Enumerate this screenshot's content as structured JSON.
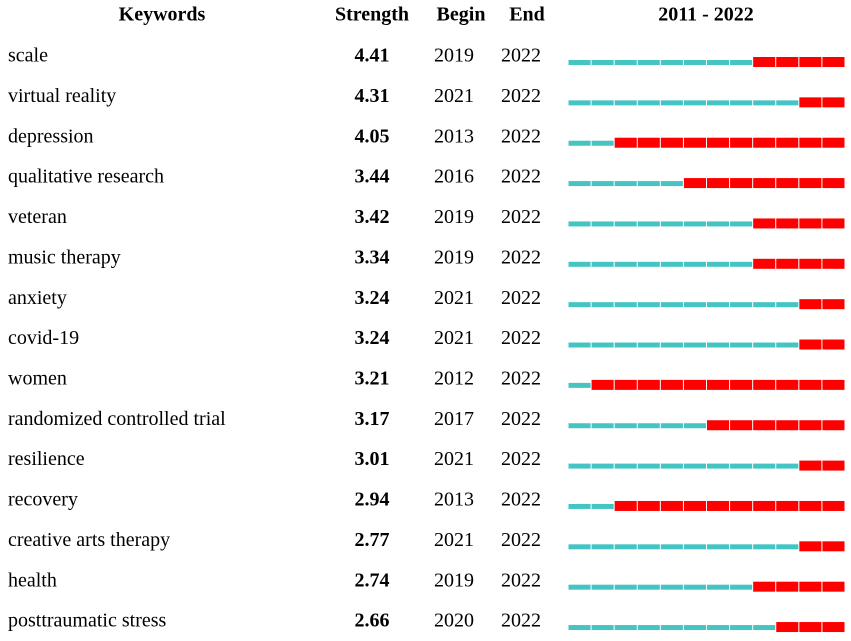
{
  "header": {
    "keyword": "Keywords",
    "strength": "Strength",
    "begin": "Begin",
    "end": "End",
    "timeline": "2011 - 2022"
  },
  "colors": {
    "before": "#45c4c4",
    "burst": "#ff0000"
  },
  "rows": [
    {
      "keyword": "scale",
      "strength": 4.41,
      "begin": 2019,
      "end": 2022
    },
    {
      "keyword": "virtual reality",
      "strength": 4.31,
      "begin": 2021,
      "end": 2022
    },
    {
      "keyword": "depression",
      "strength": 4.05,
      "begin": 2013,
      "end": 2022
    },
    {
      "keyword": "qualitative research",
      "strength": 3.44,
      "begin": 2016,
      "end": 2022
    },
    {
      "keyword": "veteran",
      "strength": 3.42,
      "begin": 2019,
      "end": 2022
    },
    {
      "keyword": "music therapy",
      "strength": 3.34,
      "begin": 2019,
      "end": 2022
    },
    {
      "keyword": "anxiety",
      "strength": 3.24,
      "begin": 2021,
      "end": 2022
    },
    {
      "keyword": "covid-19",
      "strength": 3.24,
      "begin": 2021,
      "end": 2022
    },
    {
      "keyword": "women",
      "strength": 3.21,
      "begin": 2012,
      "end": 2022
    },
    {
      "keyword": "randomized controlled trial",
      "strength": 3.17,
      "begin": 2017,
      "end": 2022
    },
    {
      "keyword": "resilience",
      "strength": 3.01,
      "begin": 2021,
      "end": 2022
    },
    {
      "keyword": "recovery",
      "strength": 2.94,
      "begin": 2013,
      "end": 2022
    },
    {
      "keyword": "creative arts therapy",
      "strength": 2.77,
      "begin": 2021,
      "end": 2022
    },
    {
      "keyword": "health",
      "strength": 2.74,
      "begin": 2019,
      "end": 2022
    },
    {
      "keyword": "posttraumatic stress",
      "strength": 2.66,
      "begin": 2020,
      "end": 2022
    }
  ]
}
